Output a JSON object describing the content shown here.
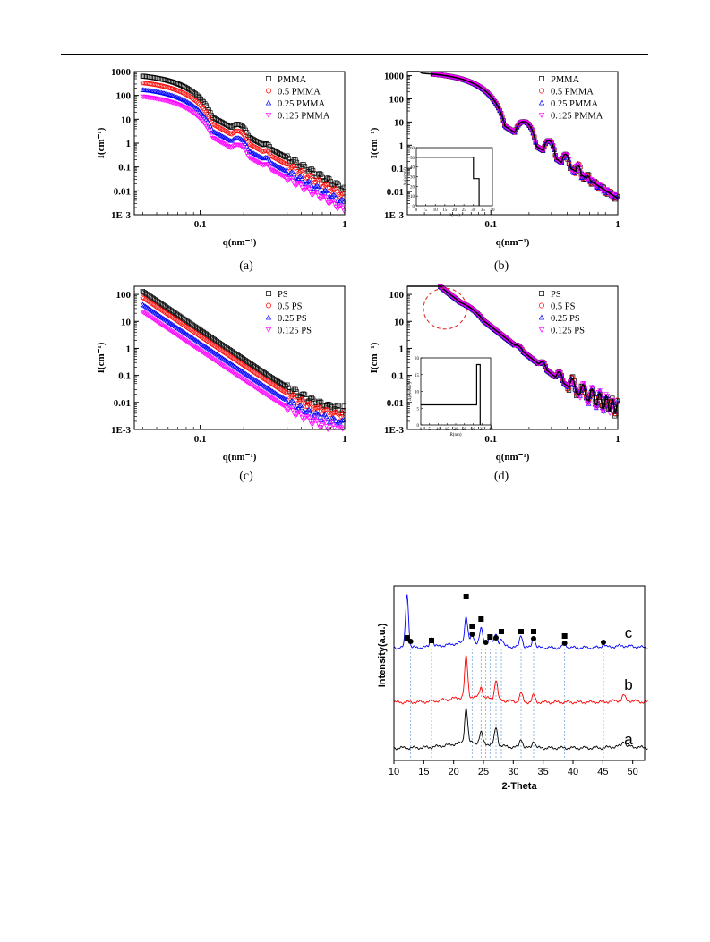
{
  "page": {
    "top_rule": true
  },
  "panels": [
    {
      "caption": "(a)",
      "xlabel": "q(nm⁻¹)",
      "ylabel": "I(cm⁻¹)",
      "xticks": [
        "0.1",
        "1"
      ],
      "yticks": [
        "1000",
        "100",
        "10",
        "1",
        "0.1",
        "0.01",
        "1E-3"
      ],
      "legend": [
        "PMMA",
        "0.5 PMMA",
        "0.25 PMMA",
        "0.125 PMMA"
      ]
    },
    {
      "caption": "(b)",
      "xlabel": "q(nm⁻¹)",
      "ylabel": "I(cm⁻¹)",
      "xticks": [
        "0.1",
        "1"
      ],
      "yticks": [
        "1000",
        "100",
        "10",
        "1",
        "0.1",
        "0.01",
        "1E-3"
      ],
      "legend": [
        "PMMA",
        "0.5 PMMA",
        "0.25 PMMA",
        "0.125 PMMA"
      ],
      "inset": {
        "ylabel": "Δρ(e/nm³)",
        "xlabel": "R(nm)",
        "yticks": [
          "0",
          "10",
          "20",
          "30",
          "40",
          "50",
          "60"
        ],
        "xticks": [
          "0",
          "5",
          "10",
          "15",
          "20",
          "25",
          "30",
          "35",
          "40"
        ]
      }
    },
    {
      "caption": "(c)",
      "xlabel": "q(nm⁻¹)",
      "ylabel": "I(cm⁻¹)",
      "xticks": [
        "0.1",
        "1"
      ],
      "yticks": [
        "100",
        "10",
        "1",
        "0.1",
        "0.01",
        "1E-3"
      ],
      "legend": [
        "PS",
        "0.5 PS",
        "0.25 PS",
        "0.125 PS"
      ]
    },
    {
      "caption": "(d)",
      "xlabel": "q(nm⁻¹)",
      "ylabel": "I(cm⁻¹)",
      "xticks": [
        "0.1",
        "1"
      ],
      "yticks": [
        "100",
        "10",
        "1",
        "0.1",
        "0.01",
        "1E-3"
      ],
      "legend": [
        "PS",
        "0.5 PS",
        "0.25 PS",
        "0.125 PS"
      ],
      "inset": {
        "ylabel": "Δρ(e/nm³)",
        "xlabel": "R(nm)",
        "yticks": [
          "0",
          "5",
          "10",
          "15",
          "20"
        ],
        "xticks": [
          "0",
          "5",
          "10",
          "15",
          "20",
          "25",
          "30",
          "35",
          "40"
        ]
      }
    }
  ],
  "xrd": {
    "xlabel": "2-Theta",
    "ylabel": "Intensity(a.u.)",
    "xticks": [
      "10",
      "15",
      "20",
      "25",
      "30",
      "35",
      "40",
      "45",
      "50"
    ],
    "curve_labels": [
      "a",
      "b",
      "c"
    ],
    "square_positions": [
      12.2,
      16.3,
      22.1,
      23.1,
      24.6,
      26.1,
      28.0,
      31.3,
      33.4,
      38.6
    ],
    "circle_positions": [
      12.8,
      23.1,
      25.4,
      27.1,
      33.4,
      38.6,
      45.1
    ],
    "dashed_positions": [
      12.8,
      16.3,
      22.1,
      23.1,
      24.6,
      25.4,
      26.1,
      27.1,
      28.0,
      31.3,
      33.4,
      38.6,
      45.1
    ]
  },
  "chart_data": [
    {
      "type": "scatter",
      "panel": "a",
      "xlabel": "q(nm⁻¹)",
      "ylabel": "I(cm⁻¹)",
      "xlim": [
        0.035,
        1
      ],
      "ylim": [
        0.001,
        1000
      ],
      "xscale": "log",
      "yscale": "log",
      "series": [
        {
          "name": "PMMA",
          "color": "#000000",
          "marker": "square",
          "I0": 900
        },
        {
          "name": "0.5 PMMA",
          "color": "#ff0000",
          "marker": "circle",
          "I0": 470
        },
        {
          "name": "0.25 PMMA",
          "color": "#0000ff",
          "marker": "triangle-up",
          "I0": 240
        },
        {
          "name": "0.125 PMMA",
          "color": "#ff00ff",
          "marker": "triangle-down",
          "I0": 125
        }
      ]
    },
    {
      "type": "scatter",
      "panel": "b",
      "xlabel": "q(nm⁻¹)",
      "ylabel": "I(cm⁻¹)",
      "xlim": [
        0.022,
        1
      ],
      "ylim": [
        0.001,
        1500
      ],
      "xscale": "log",
      "yscale": "log",
      "series": [
        {
          "name": "PMMA",
          "color": "#000000",
          "marker": "square",
          "I0": 1500
        },
        {
          "name": "0.5 PMMA",
          "color": "#ff0000",
          "marker": "circle",
          "I0": 1500
        },
        {
          "name": "0.25 PMMA",
          "color": "#0000ff",
          "marker": "triangle-up",
          "I0": 1500
        },
        {
          "name": "0.125 PMMA",
          "color": "#ff00ff",
          "marker": "triangle-down",
          "I0": 1500
        }
      ],
      "inset": {
        "R": [
          0,
          30,
          30,
          33,
          33
        ],
        "rho": [
          50,
          50,
          28,
          28,
          0
        ]
      }
    },
    {
      "type": "scatter",
      "panel": "c",
      "xlabel": "q(nm⁻¹)",
      "ylabel": "I(cm⁻¹)",
      "xlim": [
        0.035,
        1
      ],
      "ylim": [
        0.001,
        200
      ],
      "xscale": "log",
      "yscale": "log",
      "series": [
        {
          "name": "PS",
          "color": "#000000",
          "marker": "square",
          "I0": 40
        },
        {
          "name": "0.5 PS",
          "color": "#ff0000",
          "marker": "circle",
          "I0": 24
        },
        {
          "name": "0.25 PS",
          "color": "#0000ff",
          "marker": "triangle-up",
          "I0": 13
        },
        {
          "name": "0.125 PS",
          "color": "#ff00ff",
          "marker": "triangle-down",
          "I0": 7
        }
      ]
    },
    {
      "type": "scatter",
      "panel": "d",
      "xlabel": "q(nm⁻¹)",
      "ylabel": "I(cm⁻¹)",
      "xlim": [
        0.022,
        1
      ],
      "ylim": [
        0.001,
        200
      ],
      "xscale": "log",
      "yscale": "log",
      "series": [
        {
          "name": "PS",
          "color": "#000000",
          "marker": "square",
          "I0": 130
        },
        {
          "name": "0.5 PS",
          "color": "#ff0000",
          "marker": "circle",
          "I0": 130
        },
        {
          "name": "0.25 PS",
          "color": "#0000ff",
          "marker": "triangle-up",
          "I0": 130
        },
        {
          "name": "0.125 PS",
          "color": "#ff00ff",
          "marker": "triangle-down",
          "I0": 130
        }
      ],
      "inset": {
        "R": [
          0,
          32,
          32,
          34,
          34
        ],
        "rho": [
          6,
          6,
          18,
          18,
          0
        ]
      }
    },
    {
      "type": "line",
      "panel": "xrd",
      "xlabel": "2-Theta",
      "ylabel": "Intensity(a.u.)",
      "xlim": [
        10,
        52
      ],
      "series": [
        {
          "name": "a",
          "color": "#000000",
          "peaks": [
            22.1,
            24.6,
            27.1,
            31.3,
            33.4,
            48.5
          ]
        },
        {
          "name": "b",
          "color": "#ff0000",
          "peaks": [
            22.1,
            24.6,
            27.1,
            31.3,
            33.4,
            48.5
          ]
        },
        {
          "name": "c",
          "color": "#0000ff",
          "peaks": [
            12.2,
            16.3,
            22.1,
            23.1,
            24.6,
            26.1,
            27.1,
            28.0,
            31.3,
            33.4,
            38.6,
            45.1
          ]
        }
      ]
    }
  ]
}
